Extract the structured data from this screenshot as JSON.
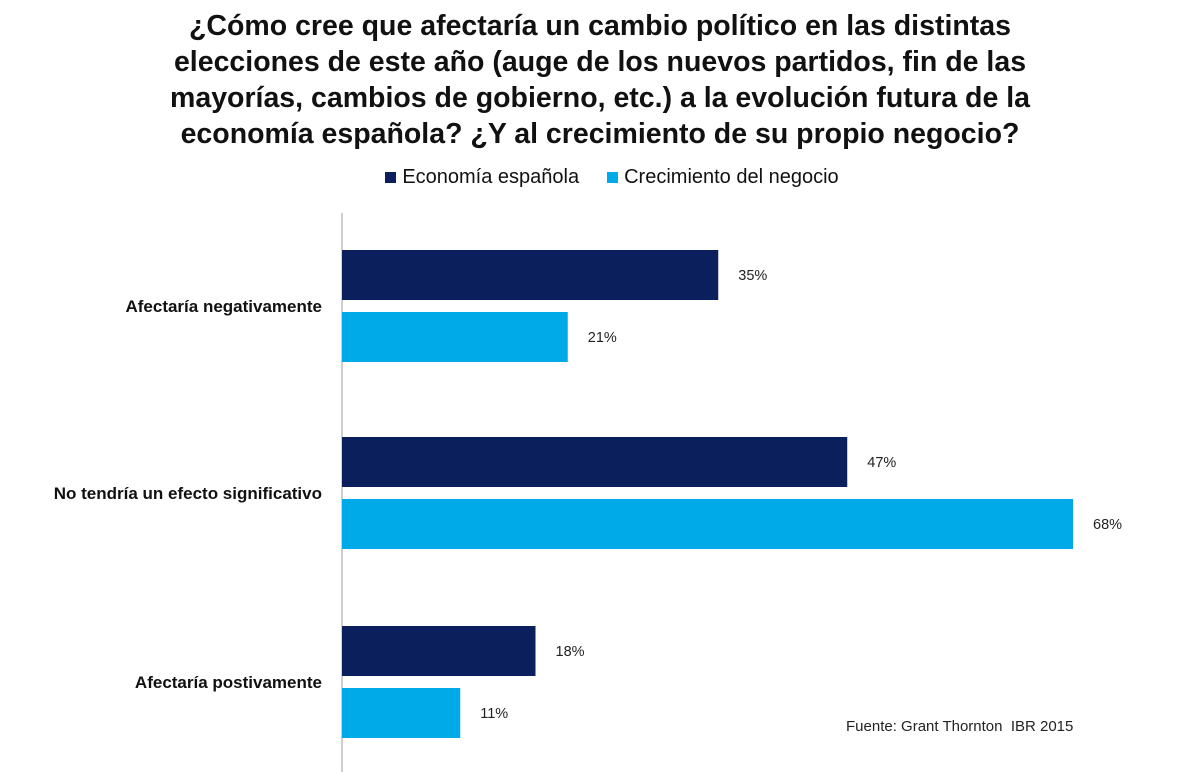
{
  "chart_data": {
    "type": "bar",
    "orientation": "horizontal",
    "title_lines": [
      "¿Cómo cree que afectaría un cambio político en las distintas",
      "elecciones de este año (auge de los nuevos partidos, fin de las",
      "mayorías, cambios de gobierno, etc.) a la evolución futura de la",
      "economía española? ¿Y al crecimiento de su propio negocio?"
    ],
    "categories": [
      "Afectaría negativamente",
      "No tendría un efecto significativo",
      "Afectaría postivamente"
    ],
    "series": [
      {
        "name": "Economía española",
        "color": "#0b1f5c",
        "values": [
          35,
          47,
          18
        ]
      },
      {
        "name": "Crecimiento del negocio",
        "color": "#00a9e8",
        "values": [
          21,
          68,
          11
        ]
      }
    ],
    "value_suffix": "%",
    "xlim": [
      0,
      70
    ],
    "legend_position": "top-center",
    "source": "Fuente: Grant Thornton  IBR 2015",
    "grid": false
  }
}
